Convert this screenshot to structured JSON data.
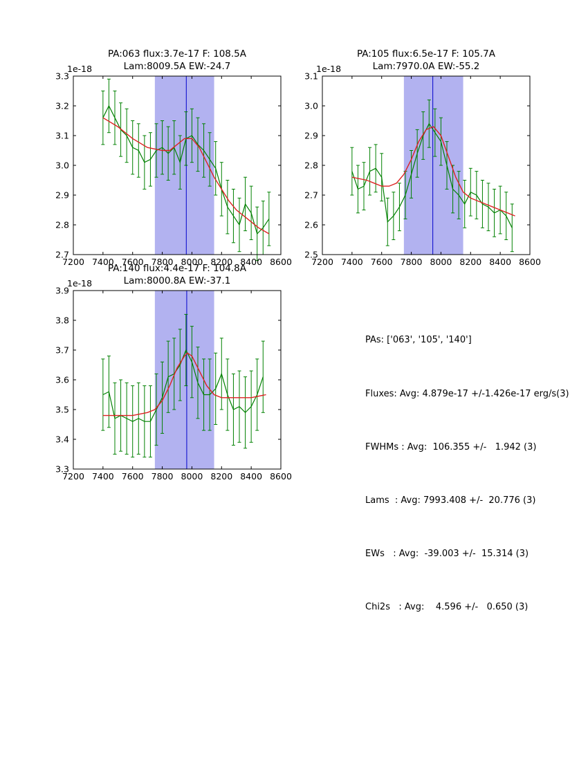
{
  "page": {
    "background": "#ffffff"
  },
  "colors": {
    "data": "#008000",
    "fit": "#dd2222",
    "band": "#b2b2f0",
    "vline": "#0000cc",
    "axis": "#000000"
  },
  "stats_panel": {
    "lines": [
      "PAs: ['063', '105', '140']",
      "Fluxes: Avg: 4.879e-17 +/-1.426e-17 erg/s(3)",
      "FWHMs : Avg:  106.355 +/-   1.942 (3)",
      "Lams  : Avg: 7993.408 +/-  20.776 (3)",
      "EWs   : Avg:  -39.003 +/-  15.314 (3)",
      "Chi2s   : Avg:    4.596 +/-   0.650 (3)"
    ]
  },
  "chart_data": [
    {
      "type": "line",
      "title_line1": "PA:063 flux:3.7e-17 F: 108.5A",
      "title_line2": "Lam:8009.5A EW:-24.7",
      "offset_label": "1e-18",
      "xlim": [
        7200,
        8600
      ],
      "ylim": [
        2.7,
        3.3
      ],
      "xticks": [
        7200,
        7400,
        7600,
        7800,
        8000,
        8200,
        8400,
        8600
      ],
      "yticks": [
        2.7,
        2.8,
        2.9,
        3.0,
        3.1,
        3.2,
        3.3
      ],
      "band": [
        7750,
        8150
      ],
      "vline": 7962,
      "series": [
        {
          "name": "spectrum",
          "x": [
            7400,
            7440,
            7480,
            7520,
            7560,
            7600,
            7640,
            7680,
            7720,
            7760,
            7800,
            7840,
            7880,
            7920,
            7960,
            8000,
            8040,
            8080,
            8120,
            8160,
            8200,
            8240,
            8280,
            8320,
            8360,
            8400,
            8440,
            8480,
            8520
          ],
          "y": [
            3.16,
            3.2,
            3.16,
            3.12,
            3.1,
            3.06,
            3.05,
            3.01,
            3.02,
            3.05,
            3.06,
            3.04,
            3.06,
            3.01,
            3.09,
            3.1,
            3.07,
            3.05,
            3.02,
            2.99,
            2.92,
            2.86,
            2.83,
            2.8,
            2.87,
            2.84,
            2.77,
            2.79,
            2.82
          ],
          "yerr": 0.09
        },
        {
          "name": "fit",
          "x": [
            7400,
            7500,
            7600,
            7700,
            7800,
            7850,
            7900,
            7950,
            8000,
            8050,
            8100,
            8150,
            8200,
            8250,
            8300,
            8350,
            8400,
            8450,
            8520
          ],
          "y": [
            3.16,
            3.13,
            3.09,
            3.06,
            3.05,
            3.05,
            3.07,
            3.09,
            3.09,
            3.06,
            3.01,
            2.96,
            2.92,
            2.88,
            2.85,
            2.83,
            2.81,
            2.79,
            2.77
          ]
        }
      ]
    },
    {
      "type": "line",
      "title_line1": "PA:105 flux:6.5e-17 F: 105.7A",
      "title_line2": "Lam:7970.0A EW:-55.2",
      "offset_label": "1e-18",
      "xlim": [
        7200,
        8600
      ],
      "ylim": [
        2.5,
        3.1
      ],
      "xticks": [
        7200,
        7400,
        7600,
        7800,
        8000,
        8200,
        8400,
        8600
      ],
      "yticks": [
        2.5,
        2.6,
        2.7,
        2.8,
        2.9,
        3.0,
        3.1
      ],
      "band": [
        7750,
        8150
      ],
      "vline": 7945,
      "series": [
        {
          "name": "spectrum",
          "x": [
            7400,
            7440,
            7480,
            7520,
            7560,
            7600,
            7640,
            7680,
            7720,
            7760,
            7800,
            7840,
            7880,
            7920,
            7960,
            8000,
            8040,
            8080,
            8120,
            8160,
            8200,
            8240,
            8280,
            8320,
            8360,
            8400,
            8440,
            8480
          ],
          "y": [
            2.78,
            2.72,
            2.73,
            2.78,
            2.79,
            2.76,
            2.61,
            2.63,
            2.66,
            2.7,
            2.77,
            2.84,
            2.9,
            2.94,
            2.91,
            2.88,
            2.8,
            2.72,
            2.7,
            2.67,
            2.71,
            2.7,
            2.67,
            2.66,
            2.64,
            2.65,
            2.63,
            2.59
          ],
          "yerr": 0.08
        },
        {
          "name": "fit",
          "x": [
            7400,
            7500,
            7550,
            7600,
            7650,
            7700,
            7750,
            7800,
            7850,
            7900,
            7950,
            8000,
            8050,
            8100,
            8150,
            8200,
            8250,
            8300,
            8350,
            8400,
            8450,
            8500
          ],
          "y": [
            2.76,
            2.75,
            2.74,
            2.73,
            2.73,
            2.74,
            2.77,
            2.82,
            2.88,
            2.92,
            2.93,
            2.9,
            2.83,
            2.76,
            2.71,
            2.69,
            2.68,
            2.67,
            2.66,
            2.65,
            2.64,
            2.63
          ]
        }
      ]
    },
    {
      "type": "line",
      "title_line1": "PA:140 flux:4.4e-17 F: 104.8A",
      "title_line2": "Lam:8000.8A EW:-37.1",
      "offset_label": "1e-18",
      "xlim": [
        7200,
        8600
      ],
      "ylim": [
        3.3,
        3.9
      ],
      "xticks": [
        7200,
        7400,
        7600,
        7800,
        8000,
        8200,
        8400,
        8600
      ],
      "yticks": [
        3.3,
        3.4,
        3.5,
        3.6,
        3.7,
        3.8,
        3.9
      ],
      "band": [
        7750,
        8150
      ],
      "vline": 7965,
      "series": [
        {
          "name": "spectrum",
          "x": [
            7400,
            7440,
            7480,
            7520,
            7560,
            7600,
            7640,
            7680,
            7720,
            7760,
            7800,
            7840,
            7880,
            7920,
            7960,
            8000,
            8040,
            8080,
            8120,
            8160,
            8200,
            8240,
            8280,
            8320,
            8360,
            8400,
            8440,
            8480
          ],
          "y": [
            3.55,
            3.56,
            3.47,
            3.48,
            3.47,
            3.46,
            3.47,
            3.46,
            3.46,
            3.5,
            3.54,
            3.61,
            3.62,
            3.65,
            3.7,
            3.66,
            3.59,
            3.55,
            3.55,
            3.57,
            3.62,
            3.55,
            3.5,
            3.51,
            3.49,
            3.51,
            3.55,
            3.61
          ],
          "yerr": 0.12
        },
        {
          "name": "fit",
          "x": [
            7400,
            7500,
            7600,
            7700,
            7750,
            7800,
            7850,
            7900,
            7950,
            7970,
            8000,
            8050,
            8100,
            8150,
            8200,
            8300,
            8400,
            8500
          ],
          "y": [
            3.48,
            3.48,
            3.48,
            3.49,
            3.5,
            3.53,
            3.58,
            3.64,
            3.68,
            3.69,
            3.68,
            3.63,
            3.58,
            3.55,
            3.54,
            3.54,
            3.54,
            3.55
          ]
        }
      ]
    }
  ]
}
